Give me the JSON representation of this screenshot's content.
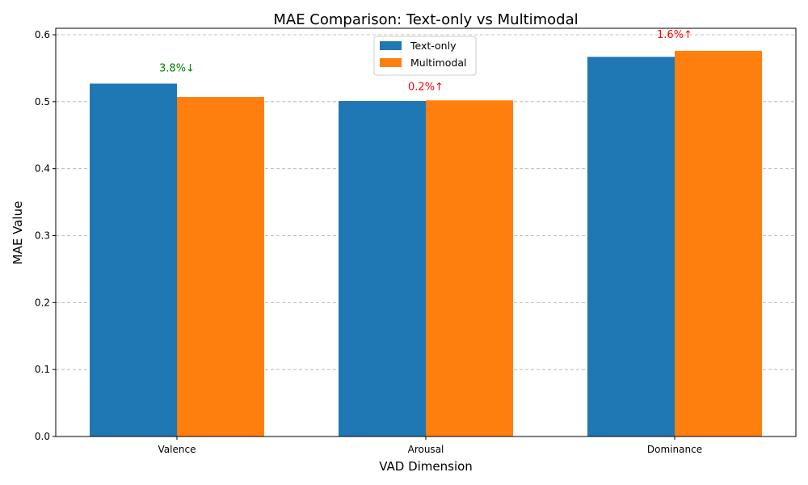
{
  "chart_data": {
    "type": "bar",
    "title": "MAE Comparison: Text-only vs Multimodal",
    "xlabel": "VAD Dimension",
    "ylabel": "MAE Value",
    "categories": [
      "Valence",
      "Arousal",
      "Dominance"
    ],
    "series": [
      {
        "name": "Text-only",
        "color": "#1f77b4",
        "values": [
          0.527,
          0.501,
          0.567
        ]
      },
      {
        "name": "Multimodal",
        "color": "#ff7f0e",
        "values": [
          0.507,
          0.502,
          0.576
        ]
      }
    ],
    "annotations": [
      {
        "category": "Valence",
        "text": "3.8%↓",
        "color": "#008000",
        "y": 0.55
      },
      {
        "category": "Arousal",
        "text": "0.2%↑",
        "color": "#ff0000",
        "y": 0.522
      },
      {
        "category": "Dominance",
        "text": "1.6%↑",
        "color": "#ff0000",
        "y": 0.6
      }
    ],
    "ylim": [
      0,
      0.6
    ],
    "yticks": [
      "0.0",
      "0.1",
      "0.2",
      "0.3",
      "0.4",
      "0.5",
      "0.6"
    ],
    "grid": "y-dashed",
    "legend": "top-center"
  }
}
